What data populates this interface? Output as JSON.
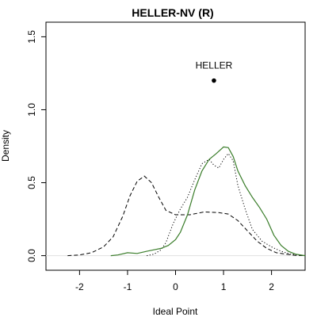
{
  "chart_data": {
    "type": "line",
    "title": "HELLER-NV (R)",
    "xlabel": "Ideal Point",
    "ylabel": "Density",
    "xlim": [
      -2.7,
      2.7
    ],
    "ylim": [
      -0.1,
      1.6
    ],
    "xticks": [
      -2,
      -1,
      0,
      1,
      2
    ],
    "xtick_labels": [
      "-2",
      "-1",
      "0",
      "1",
      "2"
    ],
    "yticks": [
      0.0,
      0.5,
      1.0,
      1.5
    ],
    "ytick_labels": [
      "0.0",
      "0.5",
      "1.0",
      "1.5"
    ],
    "grid": false,
    "legend": "none",
    "series": [
      {
        "style": "dashed",
        "color": "#000000",
        "x": [
          -2.25,
          -2.0,
          -1.75,
          -1.5,
          -1.3,
          -1.1,
          -0.95,
          -0.8,
          -0.65,
          -0.5,
          -0.35,
          -0.2,
          0.0,
          0.3,
          0.6,
          0.9,
          1.1,
          1.3,
          1.5,
          1.7,
          1.9,
          2.1,
          2.3,
          2.5,
          2.7
        ],
        "y": [
          0.0,
          0.005,
          0.02,
          0.06,
          0.13,
          0.27,
          0.41,
          0.51,
          0.545,
          0.5,
          0.4,
          0.31,
          0.28,
          0.28,
          0.3,
          0.295,
          0.285,
          0.24,
          0.17,
          0.1,
          0.05,
          0.02,
          0.01,
          0.002,
          0.0
        ]
      },
      {
        "style": "dotted",
        "color": "#000000",
        "x": [
          -0.6,
          -0.45,
          -0.3,
          -0.2,
          -0.05,
          0.1,
          0.25,
          0.4,
          0.55,
          0.7,
          0.8,
          0.9,
          1.0,
          1.1,
          1.2,
          1.3,
          1.45,
          1.6,
          1.8,
          2.0,
          2.2,
          2.4,
          2.7
        ],
        "y": [
          0.0,
          0.01,
          0.04,
          0.09,
          0.22,
          0.32,
          0.4,
          0.52,
          0.63,
          0.66,
          0.62,
          0.6,
          0.66,
          0.7,
          0.65,
          0.48,
          0.32,
          0.18,
          0.1,
          0.06,
          0.03,
          0.01,
          0.0
        ]
      },
      {
        "style": "solid",
        "color": "#3a7d2a",
        "x": [
          -1.35,
          -1.2,
          -1.0,
          -0.8,
          -0.6,
          -0.45,
          -0.3,
          -0.15,
          0.0,
          0.1,
          0.25,
          0.4,
          0.55,
          0.7,
          0.85,
          1.0,
          1.1,
          1.2,
          1.3,
          1.45,
          1.6,
          1.75,
          1.9,
          2.05,
          2.2,
          2.35,
          2.5,
          2.7
        ],
        "y": [
          0.0,
          0.005,
          0.02,
          0.015,
          0.03,
          0.04,
          0.05,
          0.07,
          0.11,
          0.16,
          0.28,
          0.45,
          0.58,
          0.66,
          0.7,
          0.745,
          0.74,
          0.68,
          0.58,
          0.48,
          0.4,
          0.33,
          0.25,
          0.14,
          0.07,
          0.03,
          0.01,
          0.0
        ]
      }
    ],
    "baseline": {
      "y": 0.0,
      "color": "#e0e0e0"
    },
    "points": [
      {
        "label": "HELLER",
        "x": 0.8,
        "y": 1.2
      }
    ]
  }
}
